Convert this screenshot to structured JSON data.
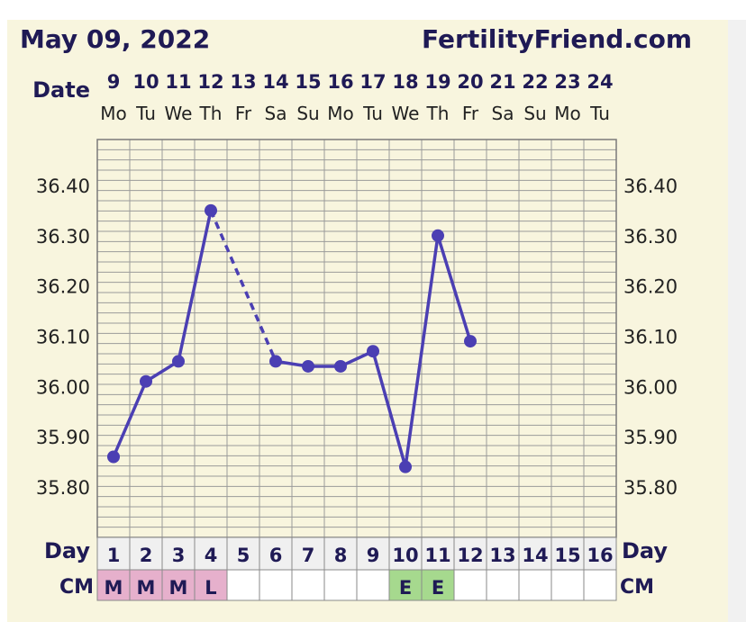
{
  "header": {
    "date": "May 09, 2022",
    "site": "FertilityFriend.com",
    "date_label": "Date",
    "day_label": "Day",
    "cm_label": "CM",
    "day_label_right": "Day",
    "cm_label_right": "CM"
  },
  "colors": {
    "line": "#4b3fb3",
    "grid": "#9a9a9a",
    "cm_m": "#e6b0cc",
    "cm_l": "#e6b0cc",
    "cm_e": "#a6d98e"
  },
  "chart_data": {
    "type": "line",
    "title": "",
    "dates": [
      "9",
      "10",
      "11",
      "12",
      "13",
      "14",
      "15",
      "16",
      "17",
      "18",
      "19",
      "20",
      "21",
      "22",
      "23",
      "24"
    ],
    "weekdays": [
      "Mo",
      "Tu",
      "We",
      "Th",
      "Fr",
      "Sa",
      "Su",
      "Mo",
      "Tu",
      "We",
      "Th",
      "Fr",
      "Sa",
      "Su",
      "Mo",
      "Tu"
    ],
    "cycle_days": [
      "1",
      "2",
      "3",
      "4",
      "5",
      "6",
      "7",
      "8",
      "9",
      "10",
      "11",
      "12",
      "13",
      "14",
      "15",
      "16"
    ],
    "temperatures": [
      35.86,
      36.01,
      36.05,
      36.35,
      null,
      36.05,
      36.04,
      36.04,
      36.07,
      35.84,
      36.3,
      36.09,
      null,
      null,
      null,
      null
    ],
    "dashed_segments": [
      [
        4,
        6
      ]
    ],
    "y_ticks": [
      "36.40",
      "36.30",
      "36.20",
      "36.10",
      "36.00",
      "35.90",
      "35.80"
    ],
    "ylim": [
      35.7,
      36.5
    ],
    "grid": true,
    "cervical_mucus": [
      "M",
      "M",
      "M",
      "L",
      "",
      "",
      "",
      "",
      "",
      "E",
      "E",
      "",
      "",
      "",
      "",
      ""
    ]
  }
}
